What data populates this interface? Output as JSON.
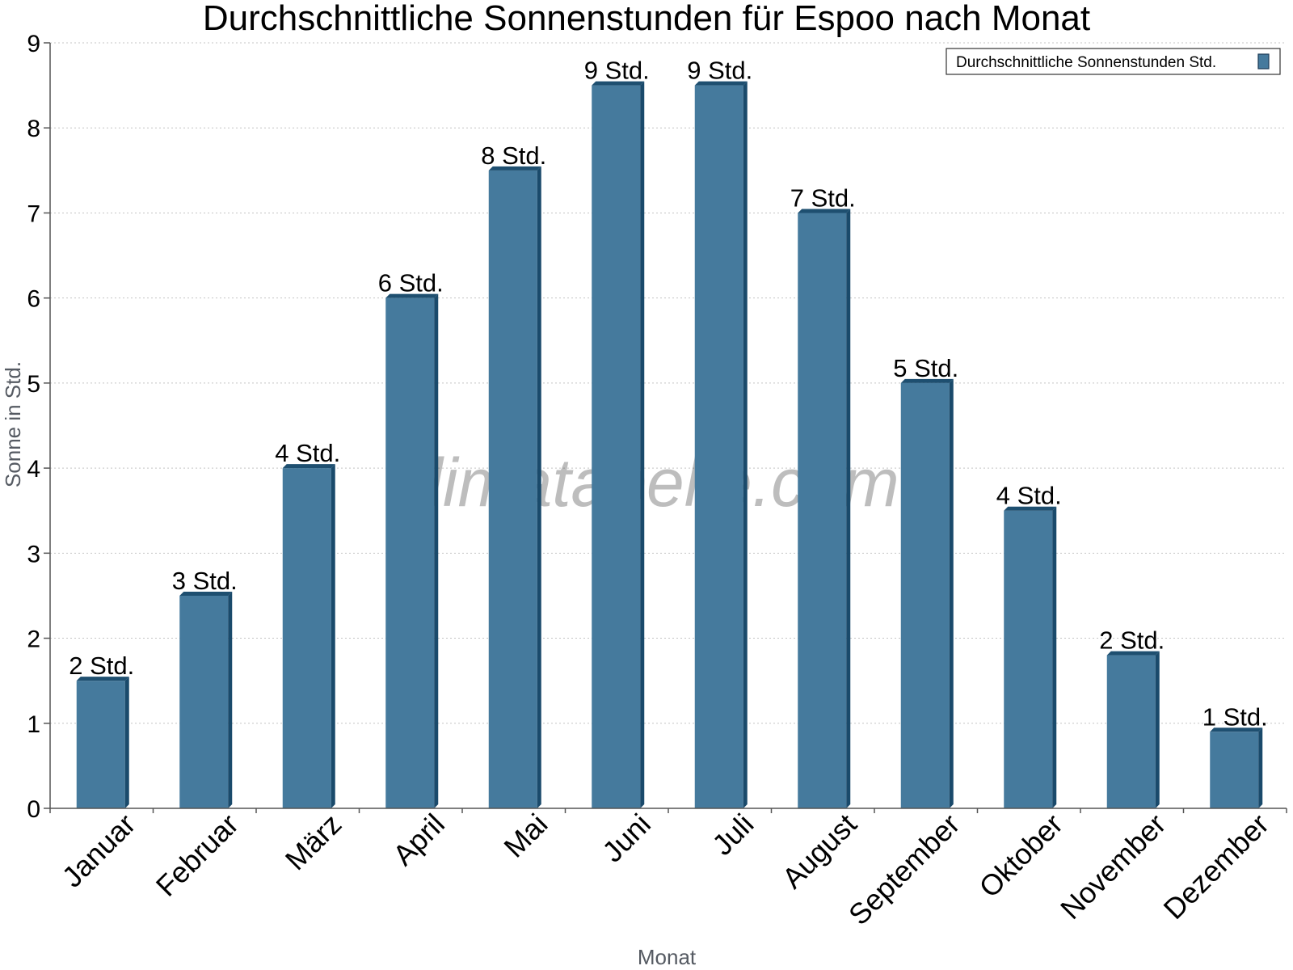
{
  "chart_data": {
    "type": "bar",
    "title": "Durchschnittliche Sonnenstunden für Espoo nach Monat",
    "xlabel": "Monat",
    "ylabel": "Sonne in Std.",
    "ylim": [
      0,
      9
    ],
    "yticks": [
      0,
      1,
      2,
      3,
      4,
      5,
      6,
      7,
      8,
      9
    ],
    "grid": true,
    "legend_position": "top-right",
    "categories": [
      "Januar",
      "Februar",
      "März",
      "April",
      "Mai",
      "Juni",
      "Juli",
      "August",
      "September",
      "Oktober",
      "November",
      "Dezember"
    ],
    "series": [
      {
        "name": "Durchschnittliche Sonnenstunden Std.",
        "values": [
          1.5,
          2.5,
          4,
          6,
          7.5,
          8.5,
          8.5,
          7,
          5,
          3.5,
          1.8,
          0.9
        ],
        "data_labels": [
          "2 Std.",
          "3 Std.",
          "4 Std.",
          "6 Std.",
          "8 Std.",
          "9 Std.",
          "9 Std.",
          "7 Std.",
          "5 Std.",
          "4 Std.",
          "2 Std.",
          "1 Std."
        ]
      }
    ],
    "watermark": "klimatabelle.com"
  },
  "colors": {
    "bar_front": "#457a9d",
    "bar_side": "#1a4a6b",
    "bar_top": "#1e4f70",
    "grid": "#c4c4c4",
    "axis": "#555555"
  }
}
